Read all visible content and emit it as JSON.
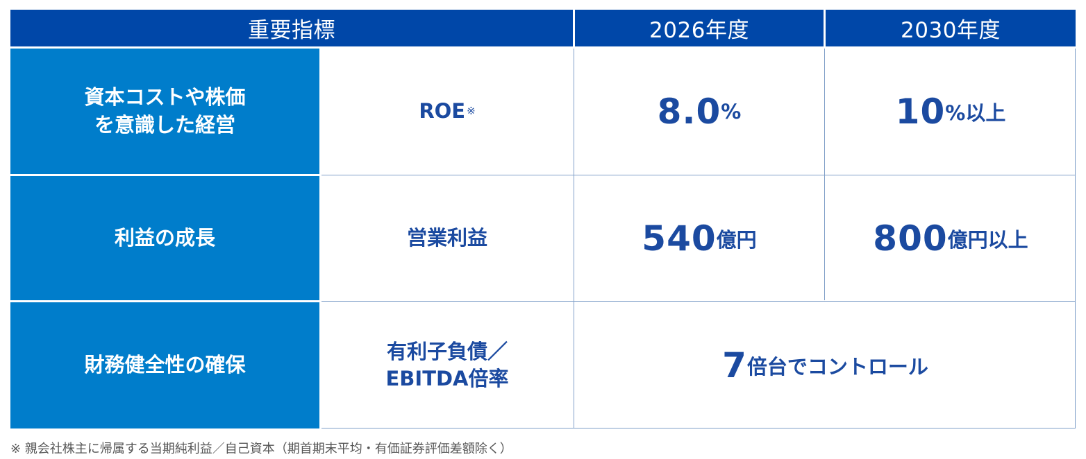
{
  "table": {
    "headers": {
      "indicator": "重要指標",
      "year_2026": "2026年度",
      "year_2030": "2030年度"
    },
    "rows": [
      {
        "category_line1": "資本コストや株価",
        "category_line2": "を意識した経営",
        "indicator": "ROE",
        "indicator_mark": "※",
        "v2026_value": "8.0",
        "v2026_unit": "%",
        "v2030_value": "10",
        "v2030_unit": "%以上"
      },
      {
        "category": "利益の成長",
        "indicator": "営業利益",
        "v2026_value": "540",
        "v2026_unit": "億円",
        "v2030_value": "800",
        "v2030_unit": "億円以上"
      },
      {
        "category": "財務健全性の確保",
        "indicator_line1": "有利子負債／",
        "indicator_line2": "EBITDA倍率",
        "combined_value": "7",
        "combined_unit": "倍台でコントロール"
      }
    ]
  },
  "footnote": "※ 親会社株主に帰属する当期純利益／自己資本（期首期末平均・有価証券評価差額除く）",
  "colors": {
    "header_bg": "#0047a8",
    "category_bg": "#007dcb",
    "value_text": "#1b4aa0",
    "grid_line": "#7f9fc8"
  }
}
